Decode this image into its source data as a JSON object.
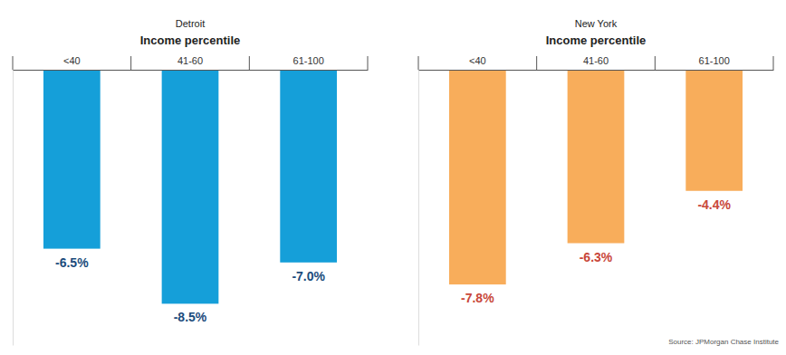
{
  "chart_data": [
    {
      "type": "bar",
      "title": "Detroit",
      "x_label": "Income percentile",
      "categories": [
        "<40",
        "41-60",
        "61-100"
      ],
      "values": [
        -6.5,
        -8.5,
        -7.0
      ],
      "value_labels": [
        "-6.5%",
        "-8.5%",
        "-7.0%"
      ],
      "color": "#159fd9",
      "ylim": [
        -10,
        0
      ],
      "yticks": [
        0
      ],
      "data_labels": true,
      "tick_labels": "x",
      "grid": false
    },
    {
      "type": "bar",
      "title": "New York",
      "x_label": "Income percentile",
      "categories": [
        "<40",
        "41-60",
        "61-100"
      ],
      "values": [
        -7.8,
        -6.3,
        -4.4
      ],
      "value_labels": [
        "-7.8%",
        "-6.3%",
        "-4.4%"
      ],
      "color": "#f8ad5b",
      "ylim": [
        -10,
        0
      ],
      "yticks": [
        0
      ],
      "data_labels": true,
      "tick_labels": "x",
      "grid": false
    }
  ],
  "source": "Source: JPMorgan Chase Institute"
}
